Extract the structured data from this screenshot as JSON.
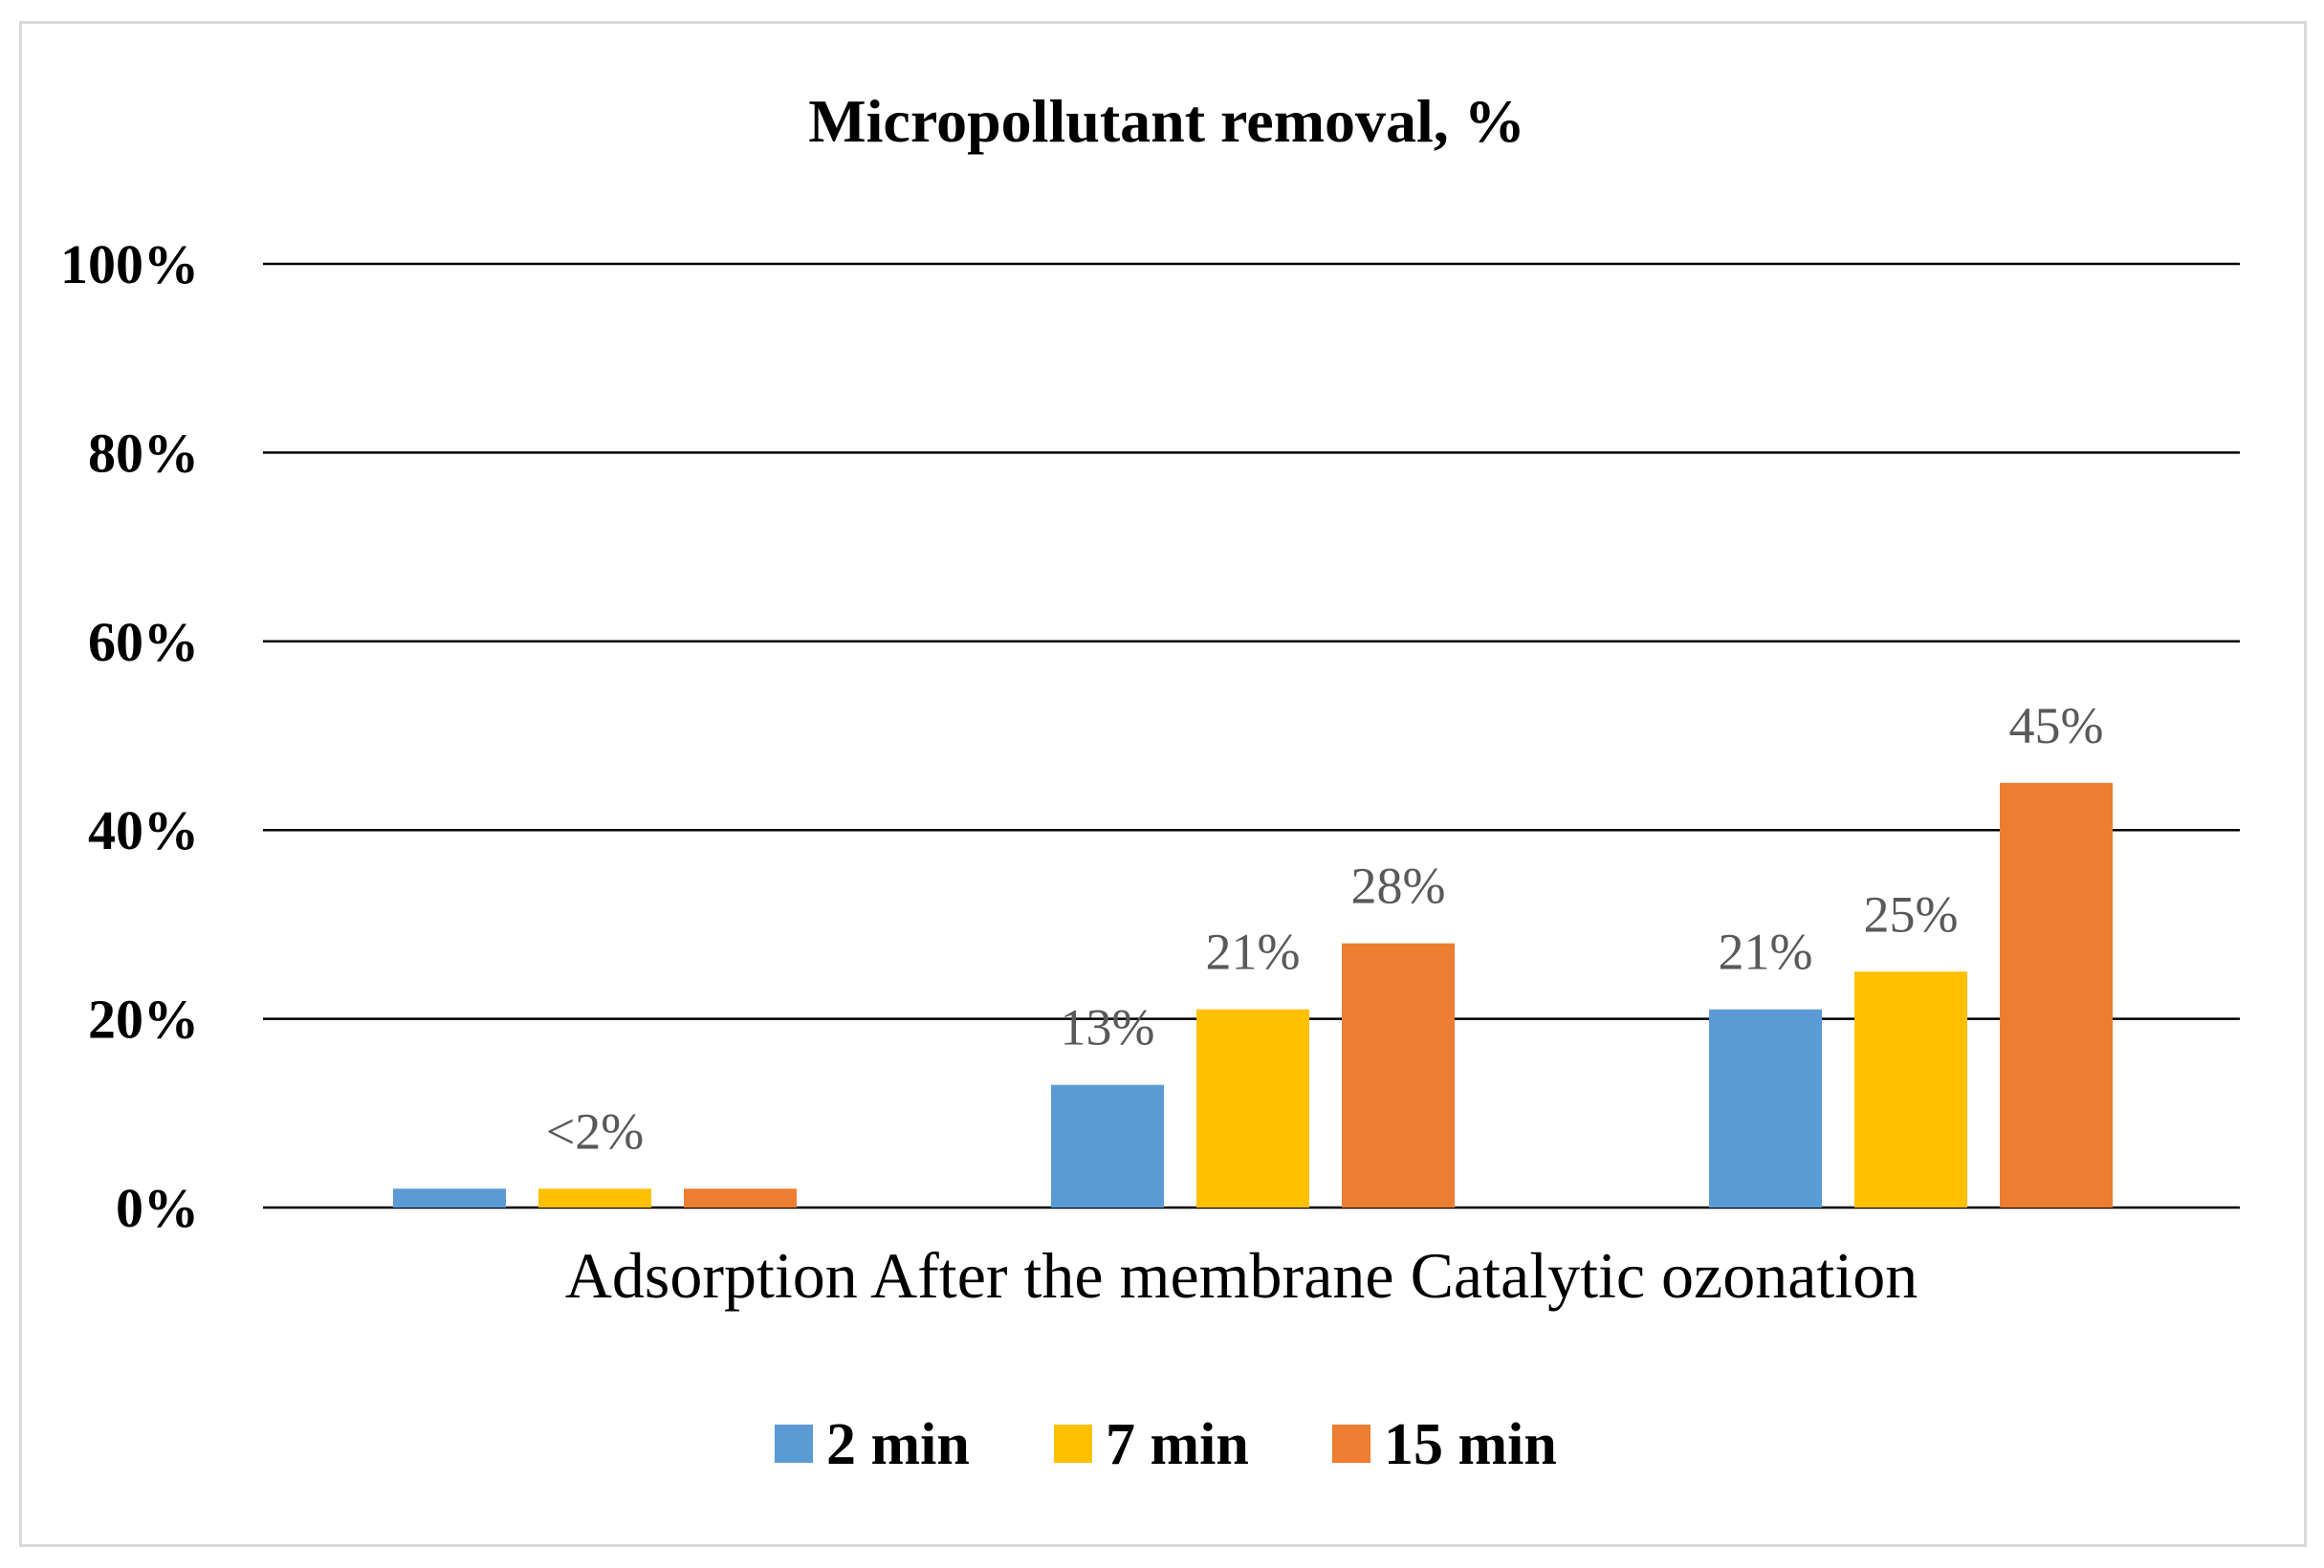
{
  "chart_data": {
    "type": "bar",
    "title": "Micropollutant removal, %",
    "xlabel": "",
    "ylabel": "",
    "categories": [
      "Adsorption",
      "After the membrane",
      "Catalytic ozonation"
    ],
    "series": [
      {
        "name": "2 min",
        "color": "#5B9BD5",
        "values": [
          2,
          13,
          21
        ],
        "labels": [
          "",
          "13%",
          "21%"
        ]
      },
      {
        "name": "7 min",
        "color": "#FFC000",
        "values": [
          2,
          21,
          25
        ],
        "labels": [
          "<2%",
          "21%",
          "25%"
        ]
      },
      {
        "name": "15 min",
        "color": "#ED7D31",
        "values": [
          2,
          28,
          45
        ],
        "labels": [
          "",
          "28%",
          "45%"
        ]
      }
    ],
    "ylim": [
      0,
      100
    ],
    "yticks": [
      0,
      20,
      40,
      60,
      80,
      100
    ],
    "ytick_labels": [
      "0%",
      "20%",
      "40%",
      "60%",
      "80%",
      "100%"
    ],
    "grid": true,
    "legend_position": "bottom-center"
  }
}
